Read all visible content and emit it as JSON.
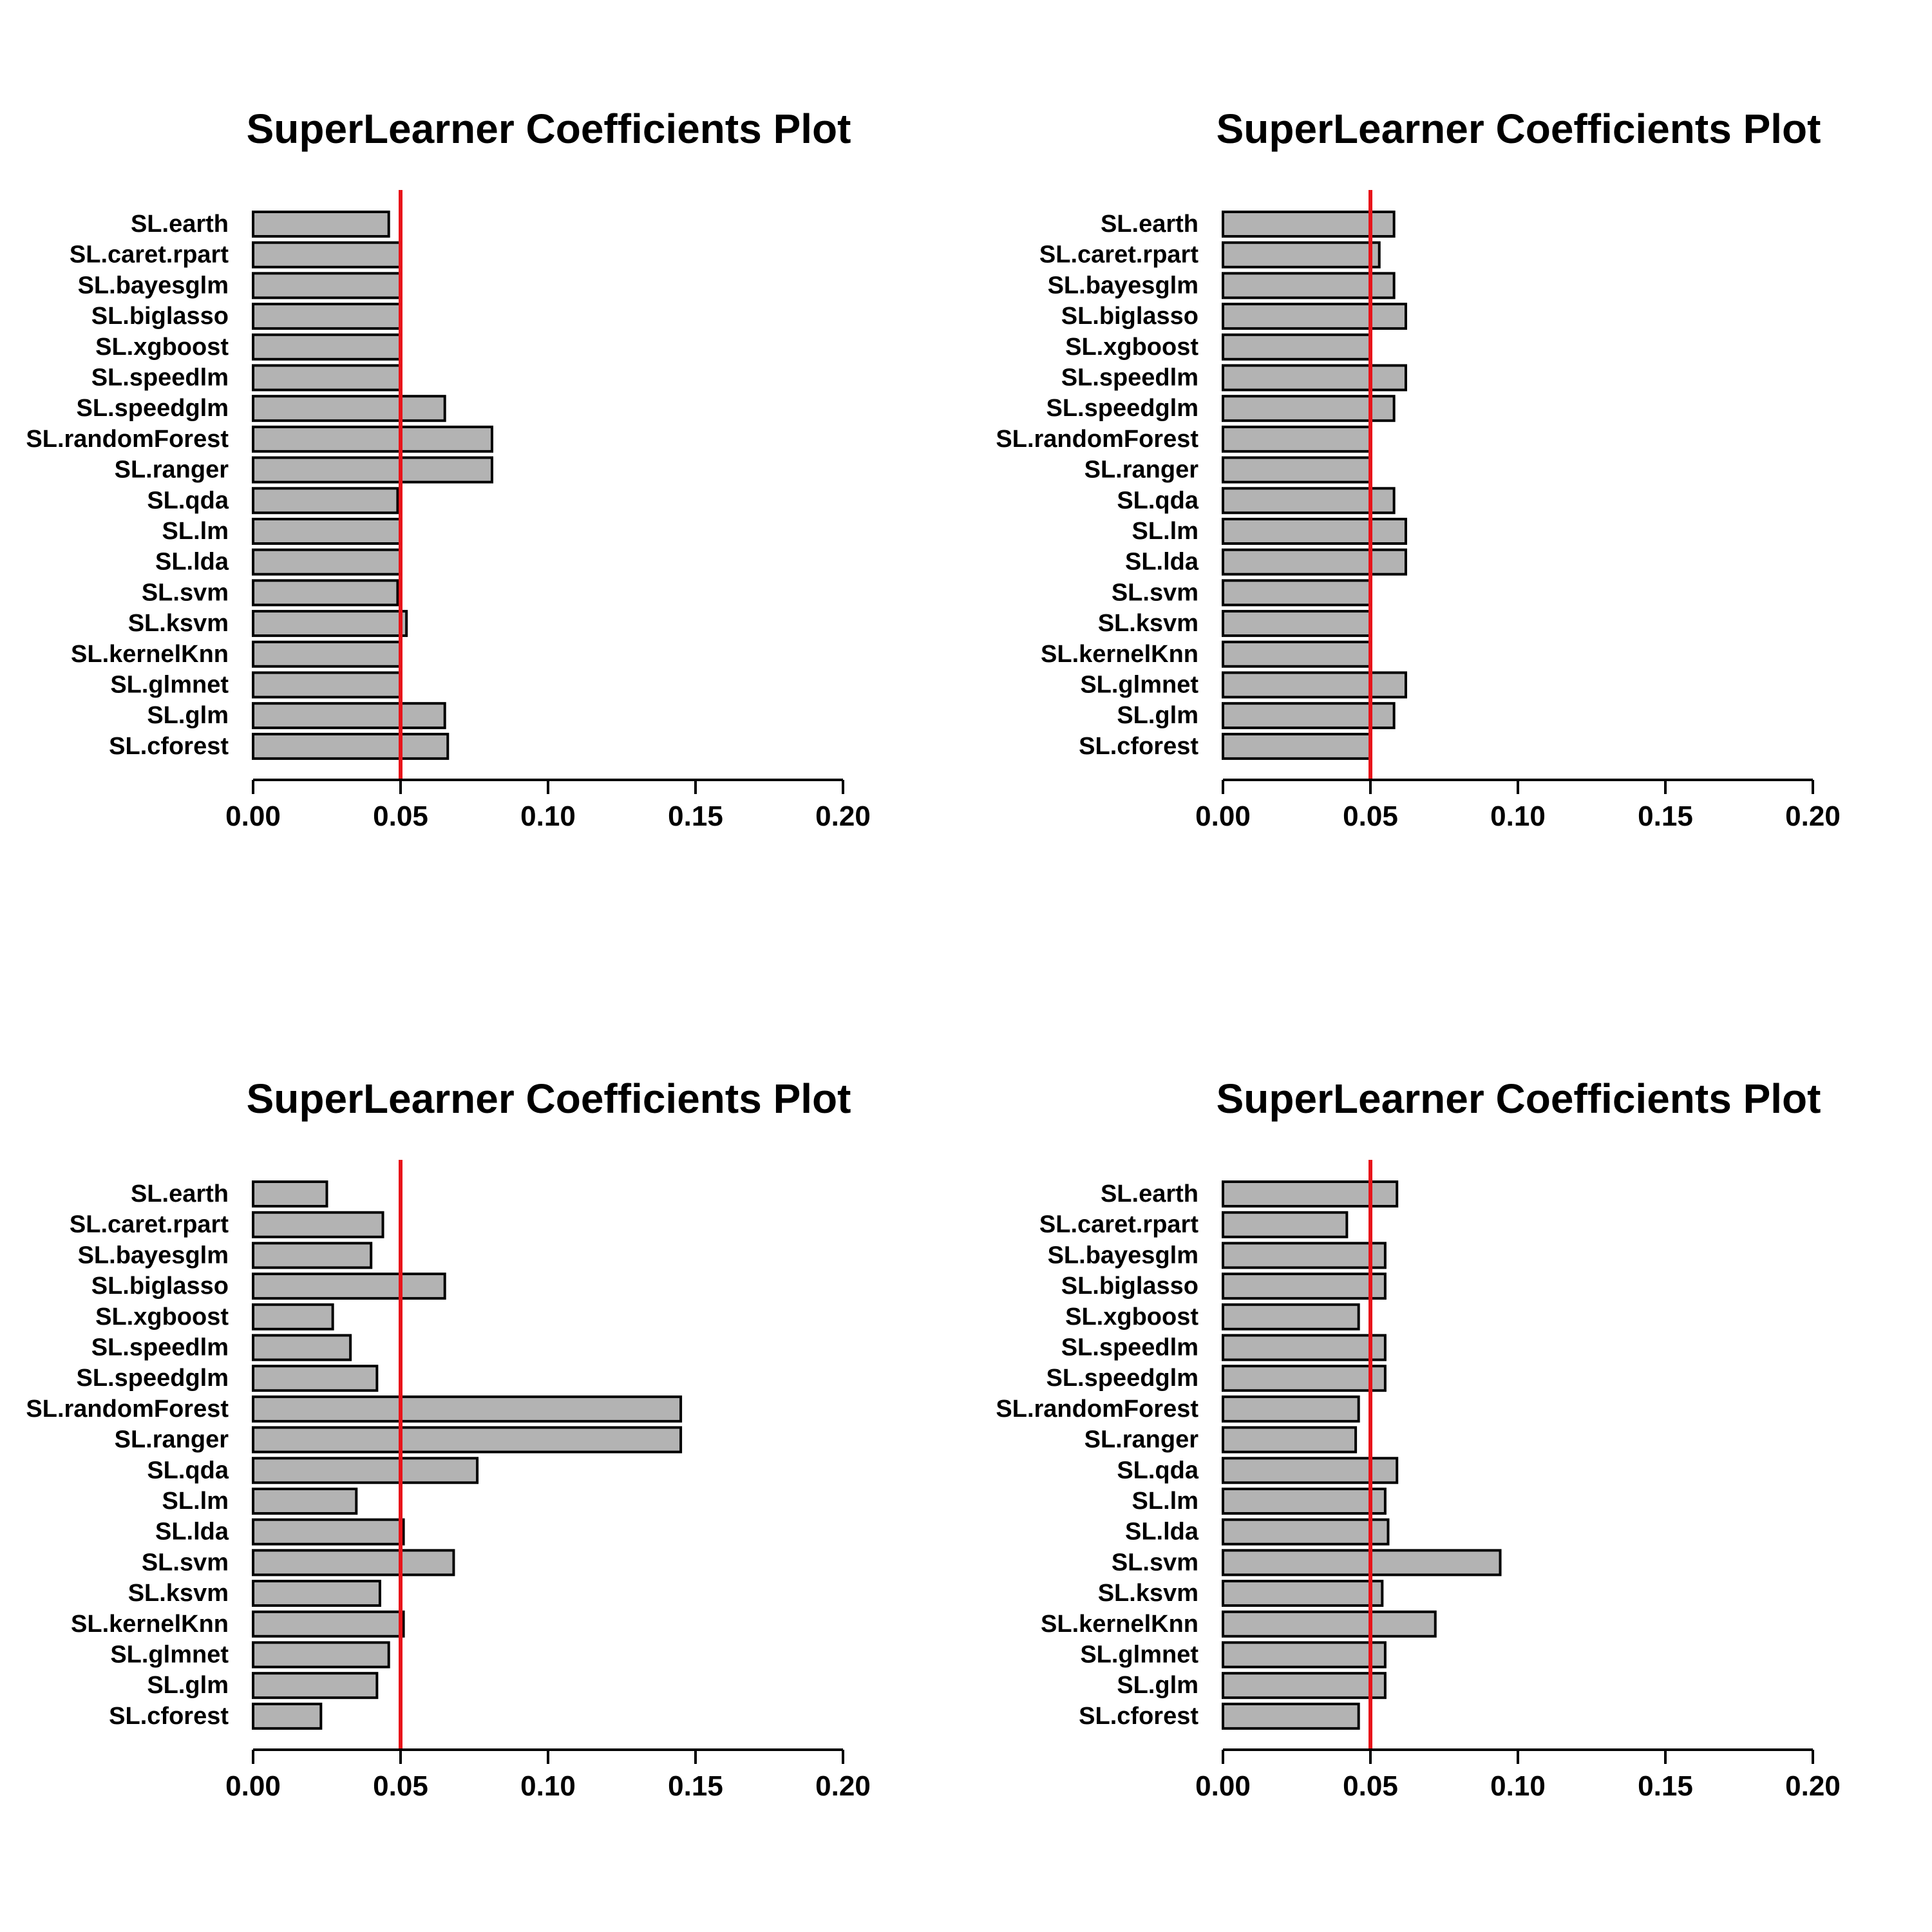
{
  "colors": {
    "bar_fill": "#b3b3b3",
    "bar_stroke": "#000000",
    "reference_line": "#e8141a",
    "axis": "#000000",
    "background": "#ffffff"
  },
  "chart_data": [
    {
      "type": "bar",
      "orientation": "horizontal",
      "title": "SuperLearner Coefficients Plot",
      "xlabel": "",
      "ylabel": "",
      "xlim": [
        0,
        0.2
      ],
      "xticks": [
        0.0,
        0.05,
        0.1,
        0.15,
        0.2
      ],
      "xtick_labels": [
        "0.00",
        "0.05",
        "0.10",
        "0.15",
        "0.20"
      ],
      "reference_line": 0.05,
      "grid": false,
      "categories": [
        "SL.earth",
        "SL.caret.rpart",
        "SL.bayesglm",
        "SL.biglasso",
        "SL.xgboost",
        "SL.speedlm",
        "SL.speedglm",
        "SL.randomForest",
        "SL.ranger",
        "SL.qda",
        "SL.lm",
        "SL.lda",
        "SL.svm",
        "SL.ksvm",
        "SL.kernelKnn",
        "SL.glmnet",
        "SL.glm",
        "SL.cforest"
      ],
      "values": [
        0.046,
        0.05,
        0.05,
        0.05,
        0.05,
        0.05,
        0.065,
        0.081,
        0.081,
        0.049,
        0.05,
        0.05,
        0.049,
        0.052,
        0.05,
        0.05,
        0.065,
        0.066
      ]
    },
    {
      "type": "bar",
      "orientation": "horizontal",
      "title": "SuperLearner Coefficients Plot",
      "xlabel": "",
      "ylabel": "",
      "xlim": [
        0,
        0.2
      ],
      "xticks": [
        0.0,
        0.05,
        0.1,
        0.15,
        0.2
      ],
      "xtick_labels": [
        "0.00",
        "0.05",
        "0.10",
        "0.15",
        "0.20"
      ],
      "reference_line": 0.05,
      "grid": false,
      "categories": [
        "SL.earth",
        "SL.caret.rpart",
        "SL.bayesglm",
        "SL.biglasso",
        "SL.xgboost",
        "SL.speedlm",
        "SL.speedglm",
        "SL.randomForest",
        "SL.ranger",
        "SL.qda",
        "SL.lm",
        "SL.lda",
        "SL.svm",
        "SL.ksvm",
        "SL.kernelKnn",
        "SL.glmnet",
        "SL.glm",
        "SL.cforest"
      ],
      "values": [
        0.058,
        0.053,
        0.058,
        0.062,
        0.05,
        0.062,
        0.058,
        0.05,
        0.05,
        0.058,
        0.062,
        0.062,
        0.05,
        0.05,
        0.05,
        0.062,
        0.058,
        0.05
      ]
    },
    {
      "type": "bar",
      "orientation": "horizontal",
      "title": "SuperLearner Coefficients Plot",
      "xlabel": "",
      "ylabel": "",
      "xlim": [
        0,
        0.2
      ],
      "xticks": [
        0.0,
        0.05,
        0.1,
        0.15,
        0.2
      ],
      "xtick_labels": [
        "0.00",
        "0.05",
        "0.10",
        "0.15",
        "0.20"
      ],
      "reference_line": 0.05,
      "grid": false,
      "categories": [
        "SL.earth",
        "SL.caret.rpart",
        "SL.bayesglm",
        "SL.biglasso",
        "SL.xgboost",
        "SL.speedlm",
        "SL.speedglm",
        "SL.randomForest",
        "SL.ranger",
        "SL.qda",
        "SL.lm",
        "SL.lda",
        "SL.svm",
        "SL.ksvm",
        "SL.kernelKnn",
        "SL.glmnet",
        "SL.glm",
        "SL.cforest"
      ],
      "values": [
        0.025,
        0.044,
        0.04,
        0.065,
        0.027,
        0.033,
        0.042,
        0.145,
        0.145,
        0.076,
        0.035,
        0.051,
        0.068,
        0.043,
        0.051,
        0.046,
        0.042,
        0.023
      ]
    },
    {
      "type": "bar",
      "orientation": "horizontal",
      "title": "SuperLearner Coefficients Plot",
      "xlabel": "",
      "ylabel": "",
      "xlim": [
        0,
        0.2
      ],
      "xticks": [
        0.0,
        0.05,
        0.1,
        0.15,
        0.2
      ],
      "xtick_labels": [
        "0.00",
        "0.05",
        "0.10",
        "0.15",
        "0.20"
      ],
      "reference_line": 0.05,
      "grid": false,
      "categories": [
        "SL.earth",
        "SL.caret.rpart",
        "SL.bayesglm",
        "SL.biglasso",
        "SL.xgboost",
        "SL.speedlm",
        "SL.speedglm",
        "SL.randomForest",
        "SL.ranger",
        "SL.qda",
        "SL.lm",
        "SL.lda",
        "SL.svm",
        "SL.ksvm",
        "SL.kernelKnn",
        "SL.glmnet",
        "SL.glm",
        "SL.cforest"
      ],
      "values": [
        0.059,
        0.042,
        0.055,
        0.055,
        0.046,
        0.055,
        0.055,
        0.046,
        0.045,
        0.059,
        0.055,
        0.056,
        0.094,
        0.054,
        0.072,
        0.055,
        0.055,
        0.046
      ]
    }
  ]
}
